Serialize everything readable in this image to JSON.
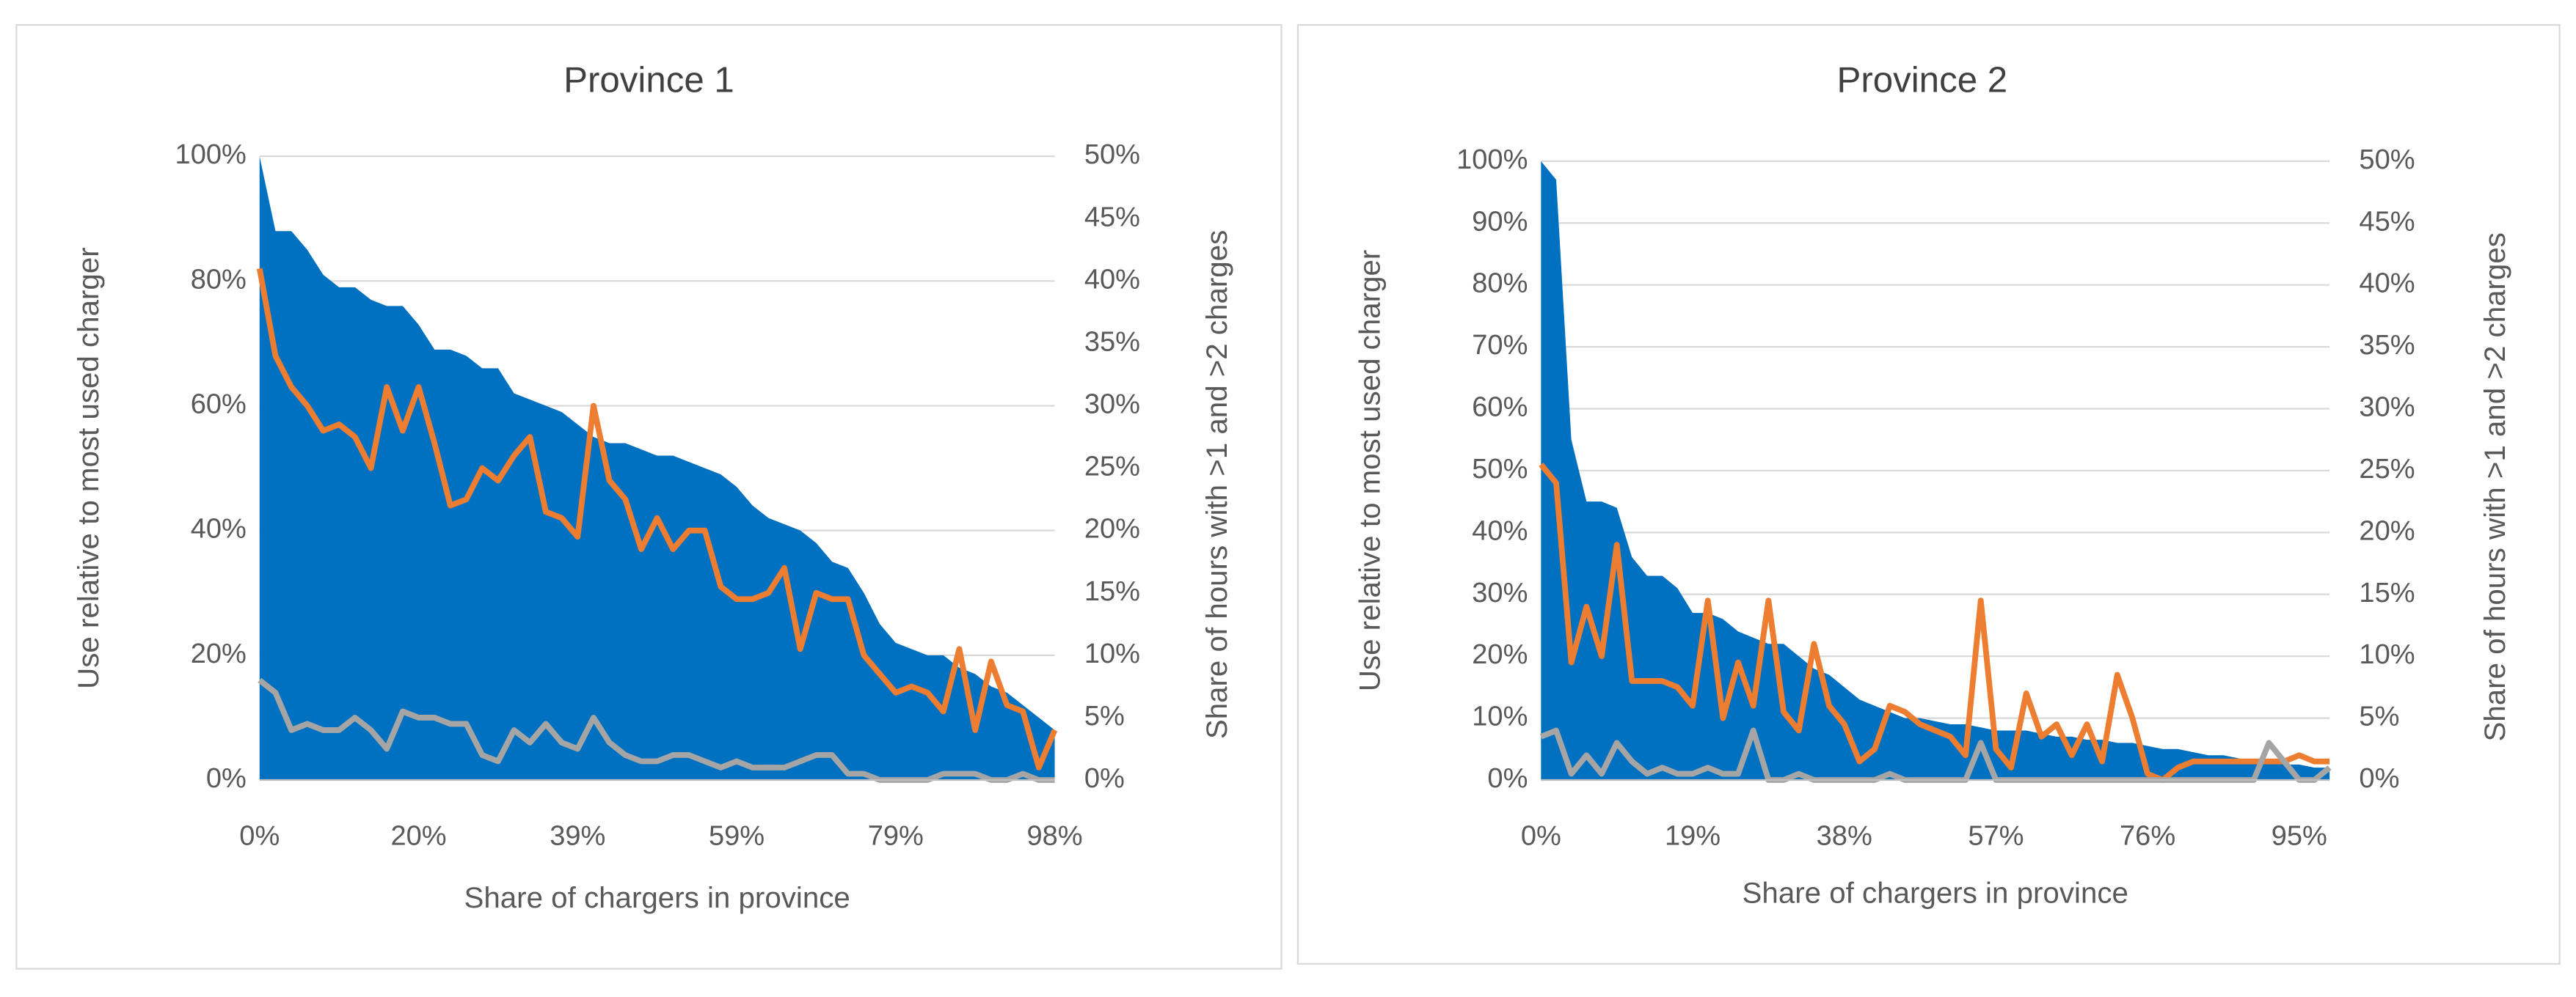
{
  "chart_data": [
    {
      "type": "combo",
      "title": "Province 1",
      "x_label": "Share of chargers in province",
      "y_label": "Use relative to most used charger",
      "y2_label": "Share of hours with >1 and >2 charges",
      "categories": [
        "0%",
        null,
        null,
        null,
        null,
        null,
        null,
        null,
        null,
        null,
        "20%",
        null,
        null,
        null,
        null,
        null,
        null,
        null,
        null,
        null,
        "39%",
        null,
        null,
        null,
        null,
        null,
        null,
        null,
        null,
        null,
        "59%",
        null,
        null,
        null,
        null,
        null,
        null,
        null,
        null,
        null,
        "79%",
        null,
        null,
        null,
        null,
        null,
        null,
        null,
        null,
        null,
        "98%"
      ],
      "ylim": [
        0,
        100
      ],
      "yticks": [
        {
          "value": 0,
          "label": "0%"
        },
        {
          "value": 20,
          "label": "20%"
        },
        {
          "value": 40,
          "label": "40%"
        },
        {
          "value": 60,
          "label": "60%"
        },
        {
          "value": 80,
          "label": "80%"
        },
        {
          "value": 100,
          "label": "100%"
        }
      ],
      "y2lim": [
        0,
        50
      ],
      "y2ticks": [
        {
          "value": 0,
          "label": "0%"
        },
        {
          "value": 5,
          "label": "5%"
        },
        {
          "value": 10,
          "label": "10%"
        },
        {
          "value": 15,
          "label": "15%"
        },
        {
          "value": 20,
          "label": "20%"
        },
        {
          "value": 25,
          "label": "25%"
        },
        {
          "value": 30,
          "label": "30%"
        },
        {
          "value": 35,
          "label": "35%"
        },
        {
          "value": 40,
          "label": "40%"
        },
        {
          "value": 45,
          "label": "45%"
        },
        {
          "value": 50,
          "label": "50%"
        }
      ],
      "grid": true,
      "series": [
        {
          "type": "area",
          "color": "#0070c0",
          "values": [
            100,
            88,
            88,
            85,
            81,
            79,
            79,
            77,
            76,
            76,
            73,
            69,
            69,
            68,
            66,
            66,
            62,
            61,
            60,
            59,
            57,
            55,
            54,
            54,
            53,
            52,
            52,
            51,
            50,
            49,
            47,
            44,
            42,
            41,
            40,
            38,
            35,
            34,
            30,
            25,
            22,
            21,
            20,
            20,
            18,
            17,
            15,
            14,
            12,
            10,
            8
          ]
        },
        {
          "type": "line",
          "axis": "y2",
          "color": "#ed7d31",
          "values": [
            41,
            34,
            31.5,
            30,
            28,
            28.5,
            27.5,
            25,
            31.5,
            28,
            31.5,
            27,
            22,
            22.5,
            25,
            24,
            26,
            27.5,
            21.5,
            21,
            19.5,
            30,
            24,
            22.5,
            18.5,
            21,
            18.5,
            20,
            20,
            15.5,
            14.5,
            14.5,
            15,
            17,
            10.5,
            15,
            14.5,
            14.5,
            10,
            8.5,
            7,
            7.5,
            7,
            5.5,
            10.5,
            4,
            9.5,
            6,
            5.5,
            1,
            4
          ]
        },
        {
          "type": "line",
          "axis": "y2",
          "color": "#a5a5a5",
          "values": [
            8,
            7,
            4,
            4.5,
            4,
            4,
            5,
            4,
            2.5,
            5.5,
            5,
            5,
            4.5,
            4.5,
            2,
            1.5,
            4,
            3,
            4.5,
            3,
            2.5,
            5,
            3,
            2,
            1.5,
            1.5,
            2,
            2,
            1.5,
            1,
            1.5,
            1,
            1,
            1,
            1.5,
            2,
            2,
            0.5,
            0.5,
            0,
            0,
            0,
            0,
            0.5,
            0.5,
            0.5,
            0,
            0,
            0.5,
            0,
            0
          ]
        }
      ]
    },
    {
      "type": "combo",
      "title": "Province 2",
      "x_label": "Share of chargers in province",
      "y_label": "Use relative to most used charger",
      "y2_label": "Share of hours with >1 and >2 charges",
      "categories": [
        "0%",
        null,
        null,
        null,
        null,
        null,
        null,
        null,
        null,
        null,
        "19%",
        null,
        null,
        null,
        null,
        null,
        null,
        null,
        null,
        null,
        "38%",
        null,
        null,
        null,
        null,
        null,
        null,
        null,
        null,
        null,
        "57%",
        null,
        null,
        null,
        null,
        null,
        null,
        null,
        null,
        null,
        "76%",
        null,
        null,
        null,
        null,
        null,
        null,
        null,
        null,
        null,
        "95%",
        null,
        null
      ],
      "ylim": [
        0,
        100
      ],
      "yticks": [
        {
          "value": 0,
          "label": "0%"
        },
        {
          "value": 10,
          "label": "10%"
        },
        {
          "value": 20,
          "label": "20%"
        },
        {
          "value": 30,
          "label": "30%"
        },
        {
          "value": 40,
          "label": "40%"
        },
        {
          "value": 50,
          "label": "50%"
        },
        {
          "value": 60,
          "label": "60%"
        },
        {
          "value": 70,
          "label": "70%"
        },
        {
          "value": 80,
          "label": "80%"
        },
        {
          "value": 90,
          "label": "90%"
        },
        {
          "value": 100,
          "label": "100%"
        }
      ],
      "y2lim": [
        0,
        50
      ],
      "y2ticks": [
        {
          "value": 0,
          "label": "0%"
        },
        {
          "value": 5,
          "label": "5%"
        },
        {
          "value": 10,
          "label": "10%"
        },
        {
          "value": 15,
          "label": "15%"
        },
        {
          "value": 20,
          "label": "20%"
        },
        {
          "value": 25,
          "label": "25%"
        },
        {
          "value": 30,
          "label": "30%"
        },
        {
          "value": 35,
          "label": "35%"
        },
        {
          "value": 40,
          "label": "40%"
        },
        {
          "value": 45,
          "label": "45%"
        },
        {
          "value": 50,
          "label": "50%"
        }
      ],
      "grid": true,
      "series": [
        {
          "type": "area",
          "color": "#0070c0",
          "values": [
            100,
            97,
            55,
            45,
            45,
            44,
            36,
            33,
            33,
            31,
            27,
            27,
            26,
            24,
            23,
            22,
            22,
            20,
            18,
            17,
            15,
            13,
            12,
            11,
            10,
            10,
            9.5,
            9,
            9,
            8.5,
            8,
            8,
            8,
            7.5,
            7,
            7,
            6.5,
            6.5,
            6,
            6,
            5.5,
            5,
            5,
            4.5,
            4,
            4,
            3.5,
            3,
            3,
            2.5,
            2.5,
            2,
            2
          ]
        },
        {
          "type": "line",
          "axis": "y2",
          "color": "#ed7d31",
          "values": [
            25.5,
            24,
            9.5,
            14,
            10,
            19,
            8,
            8,
            8,
            7.5,
            6,
            14.5,
            5,
            9.5,
            6,
            14.5,
            5.5,
            4,
            11,
            6,
            4.5,
            1.5,
            2.5,
            6,
            5.5,
            4.5,
            4,
            3.5,
            2,
            14.5,
            2.5,
            1,
            7,
            3.5,
            4.5,
            2,
            4.5,
            1.5,
            8.5,
            5,
            0.5,
            0,
            1,
            1.5,
            1.5,
            1.5,
            1.5,
            1.5,
            1.5,
            1.5,
            2,
            1.5,
            1.5
          ]
        },
        {
          "type": "line",
          "axis": "y2",
          "color": "#a5a5a5",
          "values": [
            3.5,
            4,
            0.5,
            2,
            0.5,
            3,
            1.5,
            0.5,
            1,
            0.5,
            0.5,
            1,
            0.5,
            0.5,
            4,
            0,
            0,
            0.5,
            0,
            0,
            0,
            0,
            0,
            0.5,
            0,
            0,
            0,
            0,
            0,
            3,
            0,
            0,
            0,
            0,
            0,
            0,
            0,
            0,
            0,
            0,
            0,
            0,
            0,
            0,
            0,
            0,
            0,
            0,
            3,
            1.5,
            0,
            0,
            1
          ]
        }
      ]
    }
  ]
}
